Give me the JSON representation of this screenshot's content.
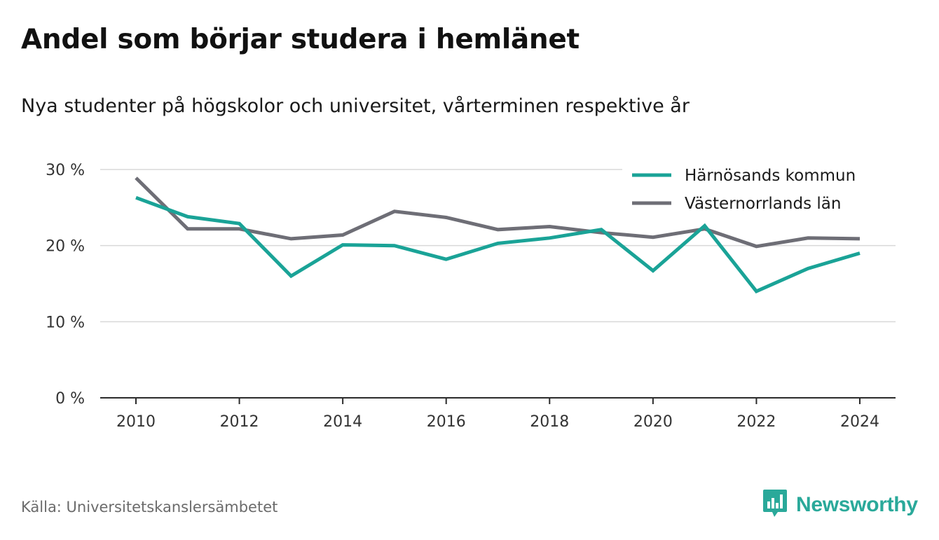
{
  "title": "Andel som börjar studera i hemlänet",
  "subtitle": "Nya studenter på högskolor och universitet, vårterminen respektive år",
  "source": "Källa: Universitetskanslersämbetet",
  "brand": {
    "name": "Newsworthy",
    "icon": "newsworthy-logo-icon",
    "color": "#2aa99a"
  },
  "chart_data": {
    "type": "line",
    "x": [
      2010,
      2011,
      2012,
      2013,
      2014,
      2015,
      2016,
      2017,
      2018,
      2019,
      2020,
      2021,
      2022,
      2023,
      2024
    ],
    "series": [
      {
        "name": "Härnösands kommun",
        "color": "#1aa397",
        "values": [
          26.3,
          23.8,
          22.9,
          16.0,
          20.1,
          20.0,
          18.2,
          20.3,
          21.0,
          22.1,
          16.7,
          22.6,
          14.0,
          17.0,
          19.0
        ]
      },
      {
        "name": "Västernorrlands län",
        "color": "#6e6e76",
        "values": [
          28.9,
          22.2,
          22.2,
          20.9,
          21.4,
          24.5,
          23.7,
          22.1,
          22.5,
          21.7,
          21.1,
          22.2,
          19.9,
          21.0,
          20.9
        ]
      }
    ],
    "xticks": [
      2010,
      2012,
      2014,
      2016,
      2018,
      2020,
      2022,
      2024
    ],
    "yticks": [
      0,
      10,
      20,
      30
    ],
    "ytick_labels": [
      "0 %",
      "10 %",
      "20 %",
      "30 %"
    ],
    "ylim": [
      0,
      30
    ],
    "xlim": [
      2010,
      2024
    ],
    "grid": "horizontal",
    "legend_position": "top-right"
  }
}
